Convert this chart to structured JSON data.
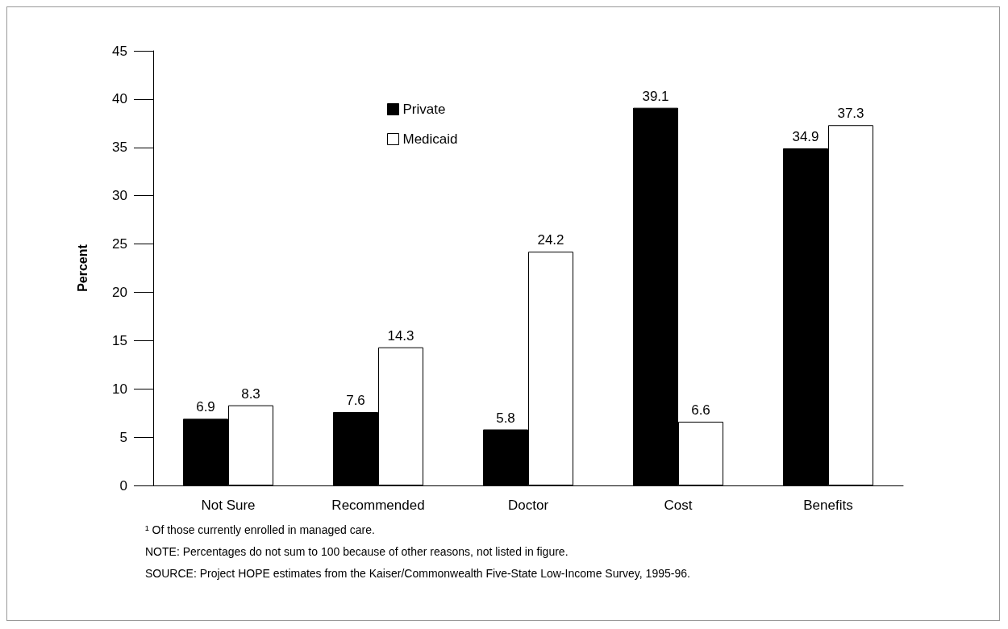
{
  "chart_data": {
    "type": "bar",
    "ylabel": "Percent",
    "categories": [
      "Not Sure",
      "Recommended",
      "Doctor",
      "Cost",
      "Benefits"
    ],
    "series": [
      {
        "name": "Private",
        "color": "#000000",
        "values": [
          6.9,
          7.6,
          5.8,
          39.1,
          34.9
        ]
      },
      {
        "name": "Medicaid",
        "color": "#ffffff",
        "values": [
          8.3,
          14.3,
          24.2,
          6.6,
          37.3
        ]
      }
    ],
    "ylim": [
      0,
      45
    ],
    "yticks": [
      0,
      5,
      10,
      15,
      20,
      25,
      30,
      35,
      40,
      45
    ],
    "data_labels": true,
    "grid": false,
    "legend": "top",
    "annotations": [
      "¹ Of those currently enrolled in managed care.",
      "NOTE: Percentages do not sum to 100 because of other reasons, not listed in figure.",
      "SOURCE: Project HOPE estimates from the Kaiser/Commonwealth Five-State Low-Income Survey, 1995-96."
    ]
  }
}
